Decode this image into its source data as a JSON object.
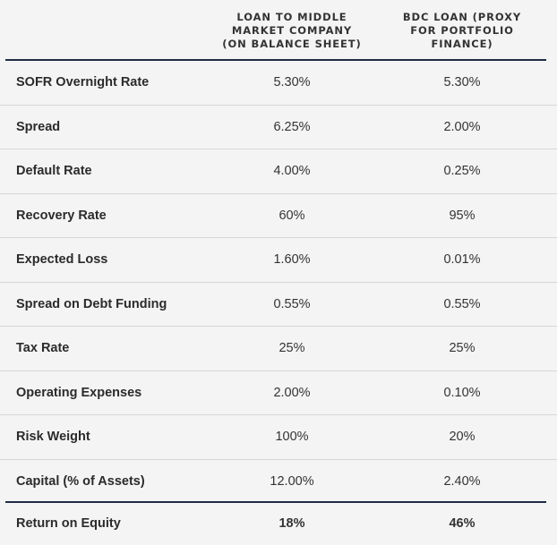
{
  "header": {
    "col1": "LOAN TO MIDDLE MARKET COMPANY (ON BALANCE SHEET)",
    "col1_lines": [
      "LOAN TO MIDDLE",
      "MARKET COMPANY",
      "(ON BALANCE SHEET)"
    ],
    "col2": "BDC LOAN (PROXY FOR PORTFOLIO FINANCE)",
    "col2_lines": [
      "BDC LOAN (PROXY",
      "FOR PORTFOLIO",
      "FINANCE)"
    ]
  },
  "rows": [
    {
      "label": "SOFR Overnight Rate",
      "col1": "5.30%",
      "col2": "5.30%"
    },
    {
      "label": "Spread",
      "col1": "6.25%",
      "col2": "2.00%"
    },
    {
      "label": "Default Rate",
      "col1": "4.00%",
      "col2": "0.25%"
    },
    {
      "label": "Recovery Rate",
      "col1": "60%",
      "col2": "95%"
    },
    {
      "label": "Expected Loss",
      "col1": "1.60%",
      "col2": "0.01%"
    },
    {
      "label": "Spread on Debt Funding",
      "col1": "0.55%",
      "col2": "0.55%"
    },
    {
      "label": "Tax Rate",
      "col1": "25%",
      "col2": "25%"
    },
    {
      "label": "Operating Expenses",
      "col1": "2.00%",
      "col2": "0.10%"
    },
    {
      "label": "Risk Weight",
      "col1": "100%",
      "col2": "20%"
    },
    {
      "label": "Capital (% of Assets)",
      "col1": "12.00%",
      "col2": "2.40%"
    }
  ],
  "total": {
    "label": "Return on Equity",
    "col1": "18%",
    "col2": "46%"
  },
  "colors": {
    "rule": "#1f2a44",
    "divider": "#d7d7d7",
    "background": "#f4f4f4"
  }
}
